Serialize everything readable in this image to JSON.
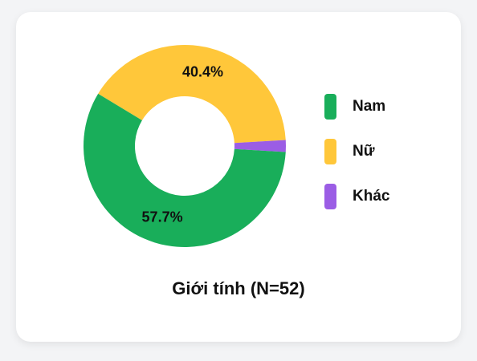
{
  "chart_data": {
    "type": "pie",
    "variant": "donut",
    "title": "Giới tính (N=52)",
    "series": [
      {
        "name": "Nam",
        "value": 57.7,
        "label": "57.7%",
        "color": "#19ae5a"
      },
      {
        "name": "Nữ",
        "value": 40.4,
        "label": "40.4%",
        "color": "#ffc73a"
      },
      {
        "name": "Khác",
        "value": 1.9,
        "label": "",
        "color": "#9b5de5"
      }
    ],
    "legend_position": "right"
  }
}
